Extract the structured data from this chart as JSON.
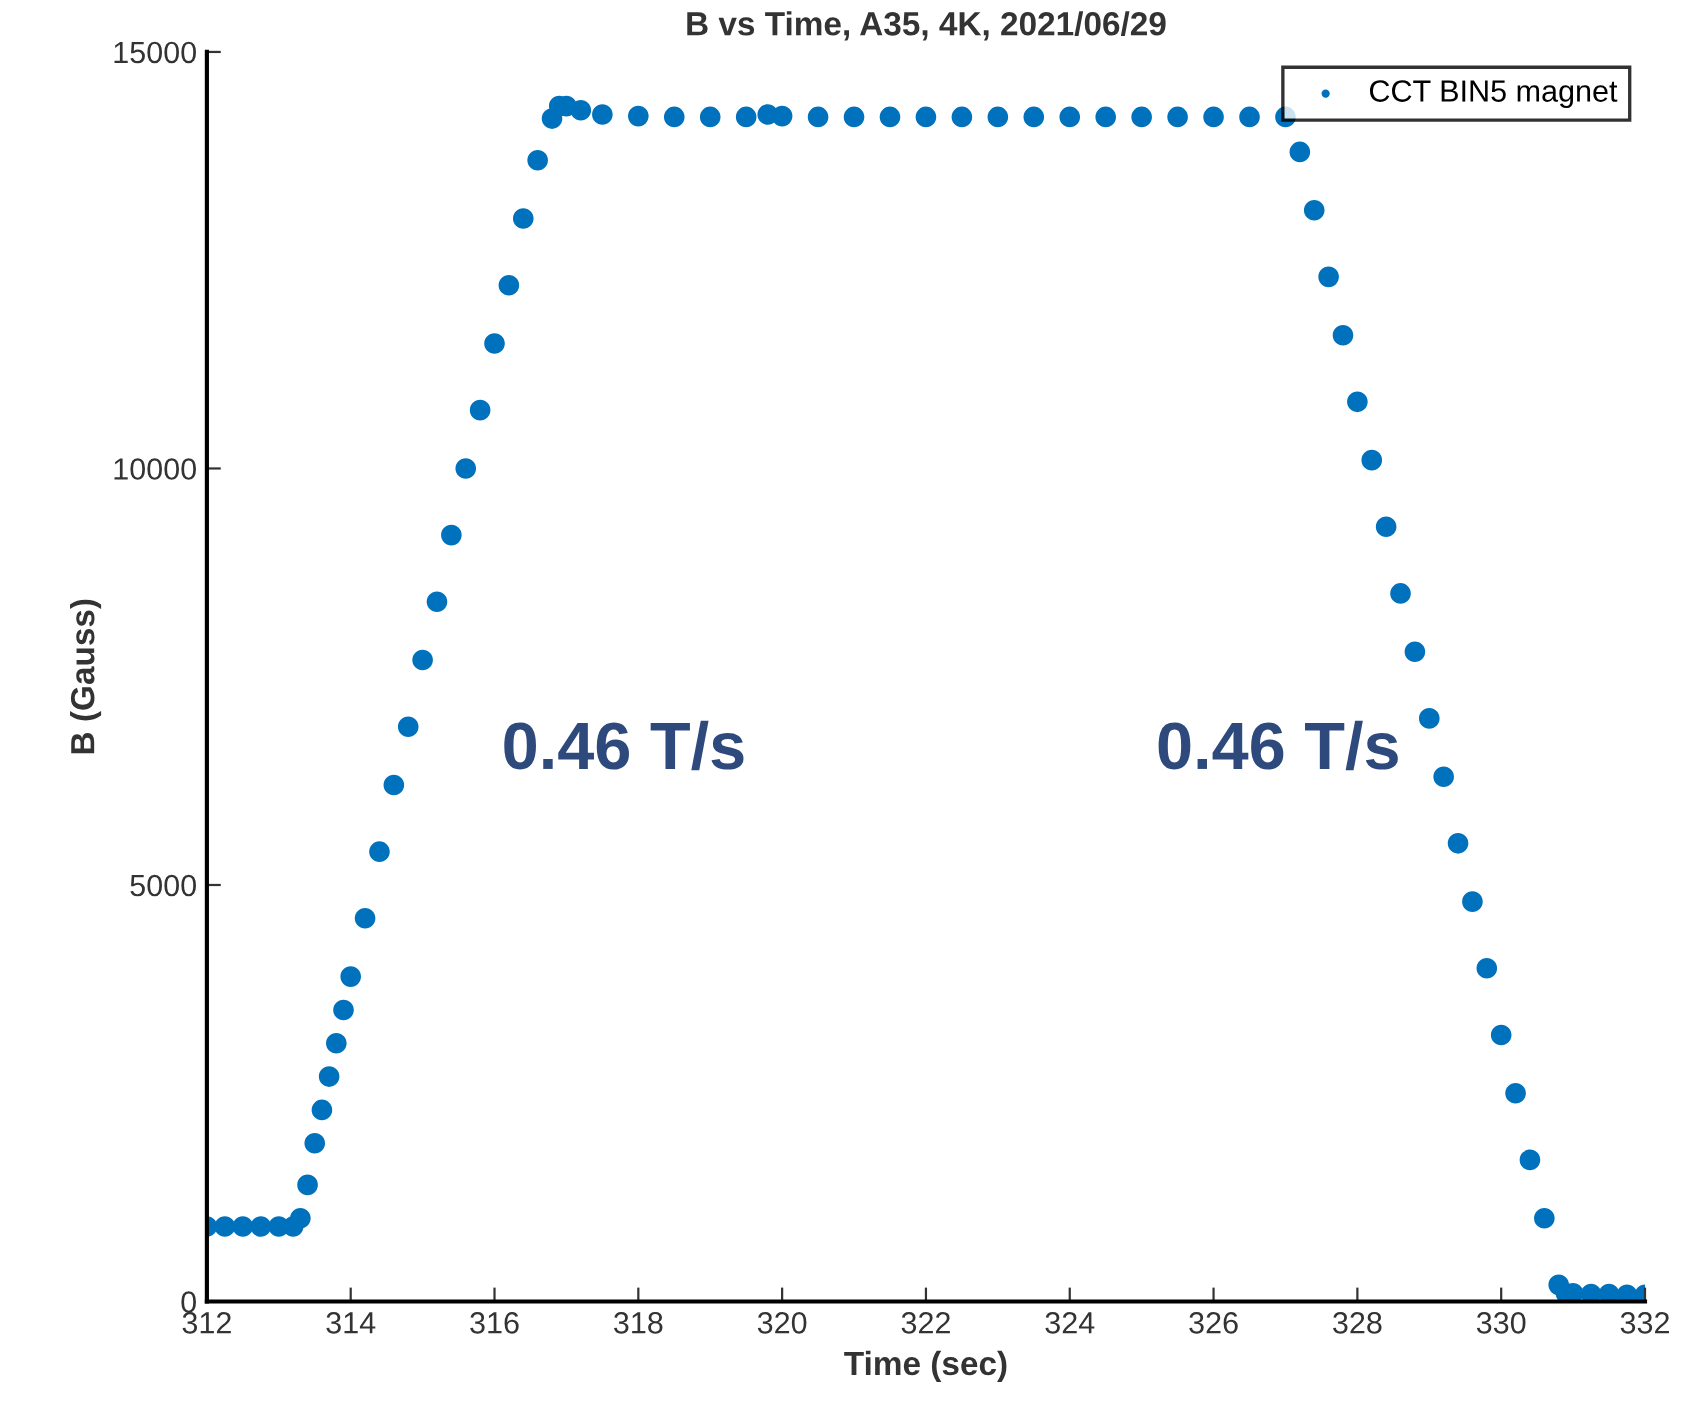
{
  "chart_data": {
    "type": "scatter",
    "title": "B vs Time, A35, 4K, 2021/06/29",
    "xlabel": "Time (sec)",
    "ylabel": "B (Gauss)",
    "xlim": [
      312,
      332
    ],
    "xticks": [
      312,
      314,
      316,
      318,
      320,
      322,
      324,
      326,
      328,
      330,
      332
    ],
    "ylim": [
      0,
      15000
    ],
    "yticks": [
      0,
      5000,
      10000,
      15000
    ],
    "grid": false,
    "legend": "top right",
    "marker": "circle",
    "series": [
      {
        "name": "CCT BIN5 magnet",
        "color": "#0072bd",
        "x": [
          312.0,
          312.25,
          312.5,
          312.75,
          313.0,
          313.2,
          313.3,
          313.4,
          313.5,
          313.6,
          313.7,
          313.8,
          313.9,
          314.0,
          314.2,
          314.4,
          314.6,
          314.8,
          315.0,
          315.2,
          315.4,
          315.6,
          315.8,
          316.0,
          316.2,
          316.4,
          316.6,
          316.8,
          316.9,
          317.0,
          317.2,
          317.5,
          318.0,
          318.5,
          319.0,
          319.5,
          319.8,
          320.0,
          320.5,
          321.0,
          321.5,
          322.0,
          322.5,
          323.0,
          323.5,
          324.0,
          324.5,
          325.0,
          325.5,
          326.0,
          326.5,
          327.0,
          327.2,
          327.4,
          327.6,
          327.8,
          328.0,
          328.2,
          328.4,
          328.6,
          328.8,
          329.0,
          329.2,
          329.4,
          329.6,
          329.8,
          330.0,
          330.2,
          330.4,
          330.6,
          330.8,
          330.9,
          331.0,
          331.25,
          331.5,
          331.75,
          332.0
        ],
        "values": [
          900,
          900,
          900,
          900,
          900,
          900,
          1000,
          1400,
          1900,
          2300,
          2700,
          3100,
          3500,
          3900,
          4600,
          5400,
          6200,
          6900,
          7700,
          8400,
          9200,
          10000,
          10700,
          11500,
          12200,
          13000,
          13700,
          14200,
          14350,
          14350,
          14300,
          14250,
          14230,
          14220,
          14220,
          14220,
          14250,
          14230,
          14220,
          14220,
          14220,
          14220,
          14220,
          14220,
          14220,
          14220,
          14220,
          14220,
          14220,
          14220,
          14220,
          14220,
          13800,
          13100,
          12300,
          11600,
          10800,
          10100,
          9300,
          8500,
          7800,
          7000,
          6300,
          5500,
          4800,
          4000,
          3200,
          2500,
          1700,
          1000,
          200,
          100,
          100,
          90,
          90,
          80,
          80
        ]
      }
    ],
    "annotations": [
      "0.46 T/s",
      "0.46 T/s"
    ]
  }
}
